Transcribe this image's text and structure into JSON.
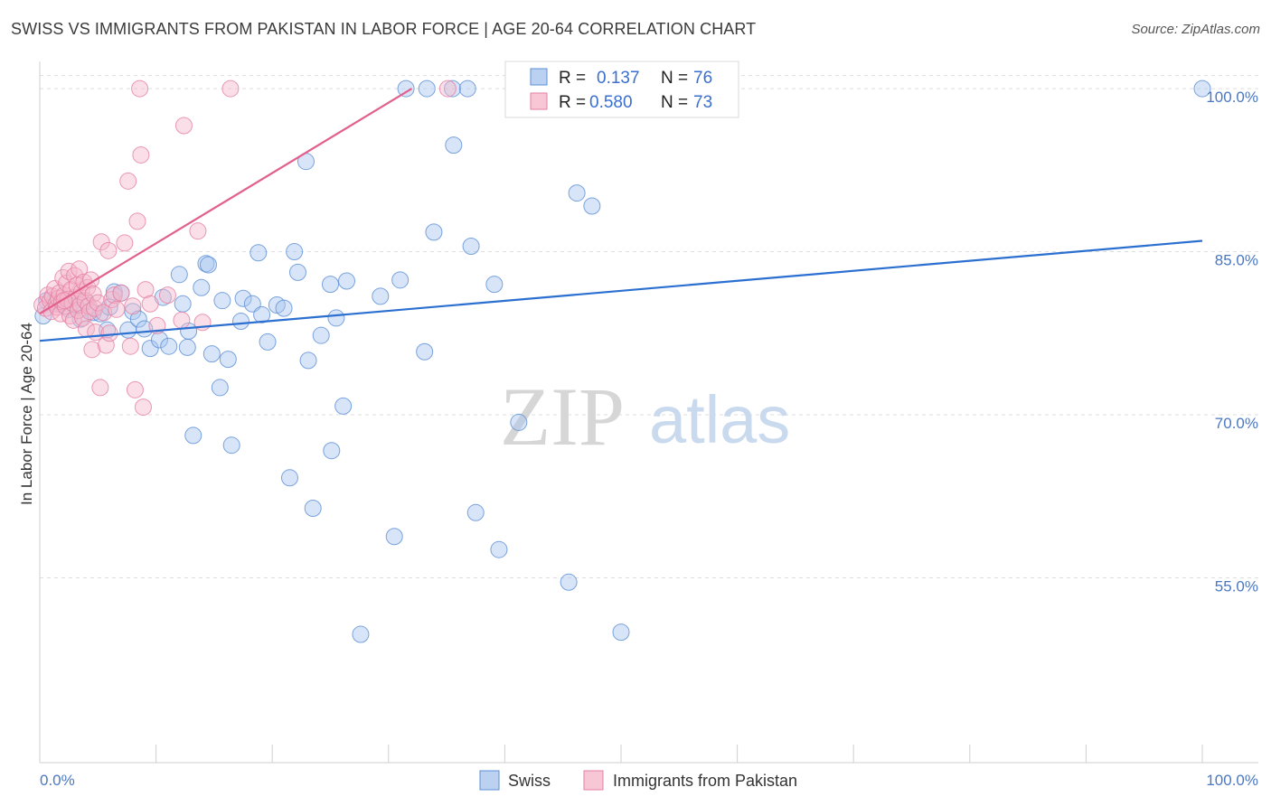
{
  "title": "SWISS VS IMMIGRANTS FROM PAKISTAN IN LABOR FORCE | AGE 20-64 CORRELATION CHART",
  "source": "Source: ZipAtlas.com",
  "watermark": {
    "zip": "ZIP",
    "atlas": "atlas"
  },
  "colors": {
    "swiss_fill": "#a9c6ef",
    "swiss_stroke": "#5b8fd6",
    "swiss_line": "#2b6fd0",
    "pak_fill": "#f5b9cc",
    "pak_stroke": "#e57fa1",
    "pak_line": "#e2608c",
    "grid": "#dddddd",
    "axis_text": "#4a78c2"
  },
  "legend": {
    "rows": [
      {
        "r_label": "R =",
        "r_value": "0.137",
        "n_label": "N =",
        "n_value": "76"
      },
      {
        "r_label": "R =",
        "r_value": "0.580",
        "n_label": "N =",
        "n_value": "73"
      }
    ]
  },
  "bottom_legend": [
    "Swiss",
    "Immigrants from Pakistan"
  ],
  "chart_data": {
    "type": "scatter",
    "title": "SWISS VS IMMIGRANTS FROM PAKISTAN IN LABOR FORCE | AGE 20-64 CORRELATION CHART",
    "xlabel": "",
    "ylabel": "In Labor Force | Age 20-64",
    "xlim": [
      0,
      100
    ],
    "ylim": [
      38,
      102.5
    ],
    "x_tick_labels": [
      "0.0%",
      "100.0%"
    ],
    "y_ticks": [
      55,
      70,
      85,
      100
    ],
    "y_tick_labels": [
      "55.0%",
      "70.0%",
      "85.0%",
      "100.0%"
    ],
    "grid": true,
    "series": [
      {
        "name": "Swiss",
        "r": 0.137,
        "n": 76,
        "trend": {
          "x": [
            0,
            100
          ],
          "y": [
            76.8,
            86.0
          ]
        },
        "points": [
          [
            0.3,
            79.1
          ],
          [
            1.2,
            80.4
          ],
          [
            1.8,
            80.2
          ],
          [
            2.5,
            79.7
          ],
          [
            3.1,
            80.0
          ],
          [
            4.0,
            80.4
          ],
          [
            4.6,
            79.4
          ],
          [
            5.2,
            79.3
          ],
          [
            6.0,
            79.9
          ],
          [
            3.5,
            78.8
          ],
          [
            5.8,
            77.8
          ],
          [
            6.4,
            81.3
          ],
          [
            7.0,
            81.2
          ],
          [
            8.0,
            79.5
          ],
          [
            7.6,
            77.8
          ],
          [
            8.5,
            78.8
          ],
          [
            9.0,
            77.9
          ],
          [
            9.5,
            76.1
          ],
          [
            10.3,
            76.9
          ],
          [
            10.6,
            80.8
          ],
          [
            11.1,
            76.3
          ],
          [
            12.0,
            82.9
          ],
          [
            12.3,
            80.2
          ],
          [
            12.7,
            76.2
          ],
          [
            12.8,
            77.7
          ],
          [
            13.2,
            68.1
          ],
          [
            13.9,
            81.7
          ],
          [
            14.3,
            83.9
          ],
          [
            14.5,
            83.8
          ],
          [
            14.8,
            75.6
          ],
          [
            15.5,
            72.5
          ],
          [
            15.7,
            80.5
          ],
          [
            16.2,
            75.1
          ],
          [
            16.5,
            67.2
          ],
          [
            17.3,
            78.6
          ],
          [
            17.5,
            80.7
          ],
          [
            18.3,
            80.2
          ],
          [
            18.8,
            84.9
          ],
          [
            19.1,
            79.2
          ],
          [
            19.6,
            76.7
          ],
          [
            20.4,
            80.1
          ],
          [
            21.0,
            79.8
          ],
          [
            21.5,
            64.2
          ],
          [
            21.9,
            85.0
          ],
          [
            22.2,
            83.1
          ],
          [
            22.9,
            93.3
          ],
          [
            23.1,
            75.0
          ],
          [
            23.5,
            61.4
          ],
          [
            24.2,
            77.3
          ],
          [
            25.0,
            82.0
          ],
          [
            25.1,
            66.7
          ],
          [
            25.5,
            78.9
          ],
          [
            26.1,
            70.8
          ],
          [
            26.4,
            82.3
          ],
          [
            27.6,
            49.8
          ],
          [
            29.3,
            80.9
          ],
          [
            30.5,
            58.8
          ],
          [
            31.0,
            82.4
          ],
          [
            31.5,
            100.0
          ],
          [
            33.1,
            75.8
          ],
          [
            33.3,
            100.0
          ],
          [
            33.9,
            86.8
          ],
          [
            35.5,
            100.0
          ],
          [
            35.6,
            94.8
          ],
          [
            36.8,
            100.0
          ],
          [
            37.1,
            85.5
          ],
          [
            37.5,
            61.0
          ],
          [
            39.1,
            82.0
          ],
          [
            39.5,
            57.6
          ],
          [
            41.2,
            69.3
          ],
          [
            45.5,
            54.6
          ],
          [
            46.2,
            90.4
          ],
          [
            47.5,
            89.2
          ],
          [
            50.0,
            50.0
          ],
          [
            100.0,
            100.0
          ],
          [
            0.6,
            80.5
          ]
        ]
      },
      {
        "name": "Immigrants from Pakistan",
        "r": 0.58,
        "n": 73,
        "trend": {
          "x": [
            0,
            32
          ],
          "y": [
            79.3,
            100.0
          ]
        },
        "points": [
          [
            0.2,
            80.1
          ],
          [
            0.5,
            79.8
          ],
          [
            0.7,
            81.0
          ],
          [
            0.9,
            80.5
          ],
          [
            1.0,
            79.5
          ],
          [
            1.1,
            80.9
          ],
          [
            1.3,
            81.6
          ],
          [
            1.4,
            80.2
          ],
          [
            1.5,
            79.9
          ],
          [
            1.6,
            80.7
          ],
          [
            1.7,
            81.2
          ],
          [
            1.8,
            79.3
          ],
          [
            1.9,
            80.4
          ],
          [
            2.0,
            82.6
          ],
          [
            2.1,
            81.0
          ],
          [
            2.2,
            80.0
          ],
          [
            2.3,
            82.1
          ],
          [
            2.4,
            80.6
          ],
          [
            2.5,
            83.2
          ],
          [
            2.6,
            79.1
          ],
          [
            2.7,
            81.5
          ],
          [
            2.8,
            80.3
          ],
          [
            2.9,
            78.7
          ],
          [
            3.0,
            82.8
          ],
          [
            3.1,
            80.8
          ],
          [
            3.2,
            81.9
          ],
          [
            3.3,
            79.6
          ],
          [
            3.4,
            83.4
          ],
          [
            3.5,
            80.1
          ],
          [
            3.6,
            81.3
          ],
          [
            3.7,
            78.9
          ],
          [
            3.8,
            82.2
          ],
          [
            3.9,
            80.5
          ],
          [
            4.0,
            77.9
          ],
          [
            4.1,
            81.7
          ],
          [
            4.2,
            80.0
          ],
          [
            4.3,
            79.5
          ],
          [
            4.4,
            82.4
          ],
          [
            4.5,
            76.0
          ],
          [
            4.6,
            81.1
          ],
          [
            4.7,
            79.8
          ],
          [
            4.8,
            77.6
          ],
          [
            5.0,
            80.3
          ],
          [
            5.2,
            72.5
          ],
          [
            5.3,
            85.9
          ],
          [
            5.5,
            79.4
          ],
          [
            5.7,
            76.4
          ],
          [
            5.9,
            85.1
          ],
          [
            6.0,
            77.5
          ],
          [
            6.2,
            80.6
          ],
          [
            6.4,
            81.0
          ],
          [
            6.6,
            79.7
          ],
          [
            7.0,
            81.2
          ],
          [
            7.3,
            85.8
          ],
          [
            7.6,
            91.5
          ],
          [
            7.8,
            76.3
          ],
          [
            8.0,
            80.0
          ],
          [
            8.2,
            72.3
          ],
          [
            8.4,
            87.8
          ],
          [
            8.6,
            100.0
          ],
          [
            8.7,
            93.9
          ],
          [
            8.9,
            70.7
          ],
          [
            9.1,
            81.5
          ],
          [
            9.5,
            80.2
          ],
          [
            10.1,
            78.2
          ],
          [
            11.0,
            81.0
          ],
          [
            12.2,
            78.7
          ],
          [
            12.4,
            96.6
          ],
          [
            13.6,
            86.9
          ],
          [
            14.0,
            78.5
          ],
          [
            16.4,
            100.0
          ],
          [
            35.1,
            100.0
          ],
          [
            2.1,
            80.5
          ]
        ]
      }
    ]
  }
}
